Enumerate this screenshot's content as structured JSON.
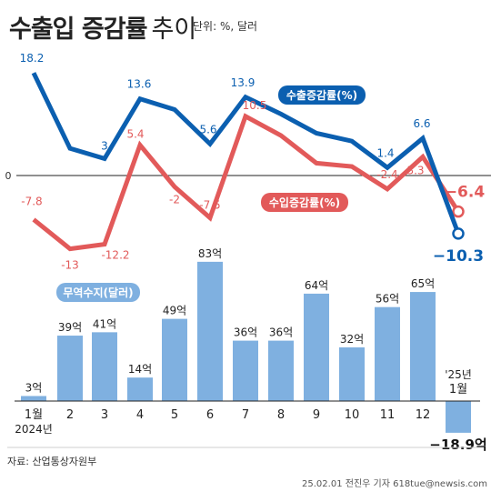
{
  "header": {
    "title": "수출입 증감률",
    "title_suffix": "추이",
    "unit": "단위: %, 달러"
  },
  "chart_data": [
    {
      "type": "line",
      "categories": [
        "1월",
        "2",
        "3",
        "4",
        "5",
        "6",
        "7",
        "8",
        "9",
        "10",
        "11",
        "12",
        "'25년 1월"
      ],
      "zero_label": "0",
      "series": [
        {
          "name": "수출증감률(%)",
          "color": "#0b5fb0",
          "values": [
            18.2,
            4.8,
            3,
            13.6,
            11.7,
            5.6,
            13.9,
            10.9,
            7.5,
            6.1,
            1.4,
            6.6,
            -10.3
          ],
          "labels": [
            "18.2",
            null,
            "3",
            "13.6",
            null,
            "5.6",
            "13.9",
            null,
            null,
            null,
            "1.4",
            "6.6",
            "-10.3"
          ]
        },
        {
          "name": "수입증감률(%)",
          "color": "#e25a5a",
          "values": [
            -7.8,
            -13,
            -12.2,
            5.4,
            -2,
            -7.5,
            10.5,
            7.1,
            2.2,
            1.6,
            -2.4,
            3.3,
            -6.4
          ],
          "labels": [
            "-7.8",
            "-13",
            "-12.2",
            "5.4",
            "-2",
            "-7.5",
            "10.5",
            null,
            null,
            null,
            "-2.4",
            "3.3",
            "-6.4"
          ]
        }
      ]
    },
    {
      "type": "bar",
      "name": "무역수지(달러)",
      "color": "#7fb0e0",
      "categories": [
        "1월",
        "2",
        "3",
        "4",
        "5",
        "6",
        "7",
        "8",
        "9",
        "10",
        "11",
        "12",
        "'25년 1월"
      ],
      "values": [
        3,
        39,
        41,
        14,
        49,
        83,
        36,
        36,
        64,
        32,
        56,
        65,
        -18.9
      ],
      "labels": [
        "3억",
        "39억",
        "41억",
        "14억",
        "49억",
        "83억",
        "36억",
        "36억",
        "64억",
        "32억",
        "56억",
        "65억",
        "-18.9억"
      ],
      "xticks": [
        "1월",
        "2",
        "3",
        "4",
        "5",
        "6",
        "7",
        "8",
        "9",
        "10",
        "11",
        "12",
        ""
      ],
      "first_year_label": "2024년",
      "last_label_top": "'25년",
      "last_label_bottom": "1월"
    }
  ],
  "footer": {
    "source": "자료: 산업통상자원부",
    "credit": "25.02.01 전진우 기자 618tue@newsis.com"
  }
}
